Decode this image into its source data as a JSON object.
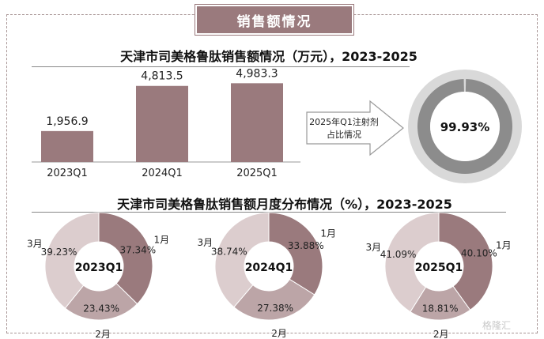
{
  "header": {
    "title": "销售额情况"
  },
  "chart_data": [
    {
      "type": "bar",
      "title": "天津市司美格鲁肽销售额情况（万元），2023-2025",
      "categories": [
        "2023Q1",
        "2024Q1",
        "2025Q1"
      ],
      "values": [
        1956.9,
        4813.5,
        4983.3
      ],
      "value_labels": [
        "1,956.9",
        "4,813.5",
        "4,983.3"
      ],
      "color": "#9a7a7d"
    },
    {
      "type": "pie",
      "subtype": "donut",
      "annotation": "2025年Q1注射剂占比情况",
      "value_label": "99.93%",
      "value": 99.93,
      "colors": [
        "#8c8c8c",
        "#d9d9d9"
      ]
    },
    {
      "type": "pie",
      "subtype": "donut",
      "title": "天津市司美格鲁肽销售额月度分布情况（%），2023-2025",
      "charts": [
        {
          "center_label": "2023Q1",
          "slices": [
            {
              "label": "1月",
              "value": 37.34,
              "value_label": "37.34%"
            },
            {
              "label": "2月",
              "value": 23.43,
              "value_label": "23.43%"
            },
            {
              "label": "3月",
              "value": 39.23,
              "value_label": "39.23%"
            }
          ]
        },
        {
          "center_label": "2024Q1",
          "slices": [
            {
              "label": "1月",
              "value": 33.88,
              "value_label": "33.88%"
            },
            {
              "label": "2月",
              "value": 27.38,
              "value_label": "27.38%"
            },
            {
              "label": "3月",
              "value": 38.74,
              "value_label": "38.74%"
            }
          ]
        },
        {
          "center_label": "2025Q1",
          "slices": [
            {
              "label": "1月",
              "value": 40.1,
              "value_label": "40.10%"
            },
            {
              "label": "2月",
              "value": 18.81,
              "value_label": "18.81%"
            },
            {
              "label": "3月",
              "value": 41.09,
              "value_label": "41.09%"
            }
          ]
        }
      ],
      "colors": [
        "#9a7a7d",
        "#bca5a7",
        "#dccdce"
      ]
    }
  ],
  "watermark": "格隆汇"
}
